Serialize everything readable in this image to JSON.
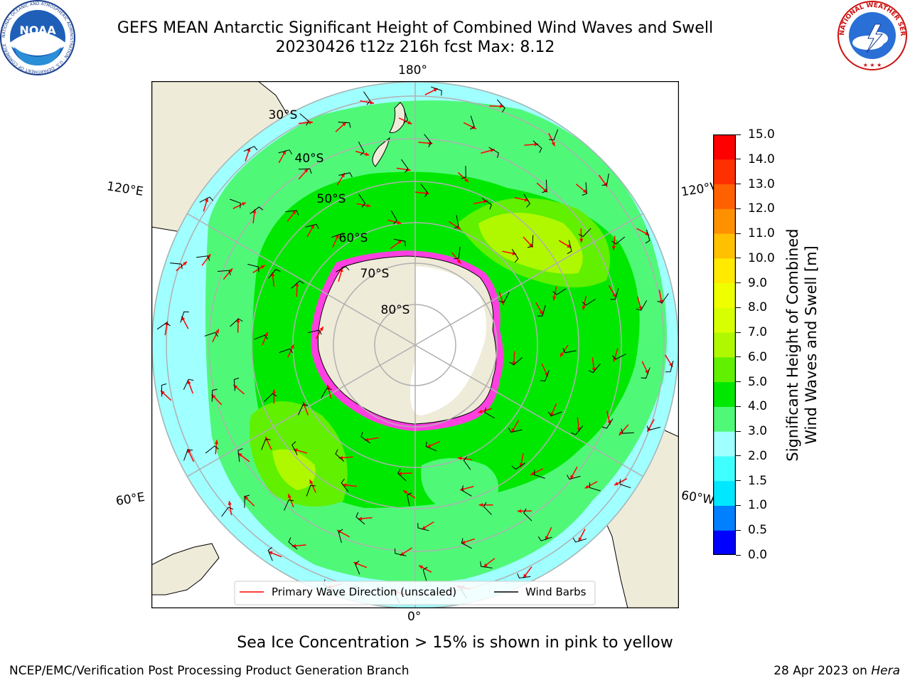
{
  "header": {
    "title_line1": "GEFS MEAN Antarctic Significant Height of Combined Wind Waves and Swell",
    "title_line2": "20230426 t12z 216h fcst   Max: 8.12"
  },
  "logos": {
    "noaa_text": "NOAA",
    "noaa_ring": "NATIONAL OCEANIC AND ATMOSPHERIC ADMINISTRATION · U.S. DEPARTMENT OF COMMERCE",
    "nws_ring": "NATIONAL WEATHER SERVICE"
  },
  "map": {
    "lon_labels": {
      "top": "180°",
      "bottom": "0°",
      "left_upper": "120°E",
      "left_lower": "60°E",
      "right_upper": "120°W",
      "right_lower": "60°W"
    },
    "lat_labels": [
      "30°S",
      "40°S",
      "50°S",
      "60°S",
      "70°S",
      "80°S"
    ],
    "legend": {
      "primary_wave": "Primary Wave Direction (unscaled)",
      "wind_barbs": "Wind Barbs",
      "arrow_color": "#ff0000",
      "barb_color": "#000000"
    }
  },
  "colorbar": {
    "label_line1": "Significant Height of Combined",
    "label_line2": "Wind Waves and Swell [m]",
    "ticks": [
      "0.0",
      "0.5",
      "1.0",
      "1.5",
      "2.0",
      "3.0",
      "4.0",
      "5.0",
      "6.0",
      "7.0",
      "8.0",
      "9.0",
      "10.0",
      "11.0",
      "12.0",
      "13.0",
      "14.0",
      "15.0"
    ],
    "colors": [
      "#0000ff",
      "#0080ff",
      "#00e8ff",
      "#40ffff",
      "#a0ffff",
      "#50f878",
      "#00e800",
      "#60f000",
      "#b0f800",
      "#d8ff00",
      "#f0ff00",
      "#ffea00",
      "#ffc000",
      "#ff9000",
      "#ff6000",
      "#ff3000",
      "#ff0000"
    ]
  },
  "sea_ice_note": "Sea Ice Concentration > 15% is shown in pink to yellow",
  "footer": {
    "left": "NCEP/EMC/Verification Post Processing Product Generation Branch",
    "right_prefix": "28 Apr 2023 on ",
    "right_machine": "Hera"
  }
}
